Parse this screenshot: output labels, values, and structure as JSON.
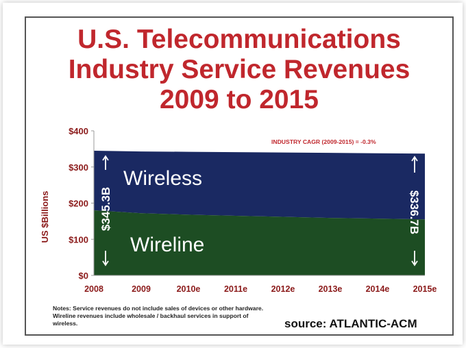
{
  "chart_data": {
    "type": "area",
    "title": "U.S. Telecommunications Industry Service Revenues 2009 to 2015",
    "title_lines": [
      "U.S. Telecommunications",
      "Industry Service Revenues",
      "2009 to 2015"
    ],
    "ylabel": "US $Billions",
    "xlabel": "",
    "categories": [
      "2008",
      "2009",
      "2010e",
      "2011e",
      "2012e",
      "2013e",
      "2014e",
      "2015e"
    ],
    "ylim": [
      0,
      400
    ],
    "yticks": [
      "$0",
      "$100",
      "$200",
      "$300",
      "$400"
    ],
    "series": [
      {
        "name": "Wireline",
        "values": [
          180,
          172,
          168,
          165,
          162,
          159,
          157,
          155
        ]
      },
      {
        "name": "Wireless",
        "values": [
          165,
          171,
          174,
          176,
          178,
          180,
          181,
          182
        ]
      }
    ],
    "totals_by_year": [
      345.3,
      343,
      342,
      341,
      340,
      339,
      338,
      336.7
    ],
    "annotation_cagr": "INDUSTRY CAGR (2009-2015) = -0.3%",
    "annotation_start": "$345.3B",
    "annotation_end": "$336.7B",
    "grid": false,
    "colors": {
      "wireless": "#1a2962",
      "wireline": "#1d4d23",
      "title": "#c0272d",
      "axis_text": "#8b1a1a"
    }
  },
  "footer": {
    "notes": "Notes: Service revenues do not include sales of devices or other hardware. Wireline revenues include wholesale / backhaul services in support of wireless.",
    "source": "source: ATLANTIC-ACM"
  }
}
